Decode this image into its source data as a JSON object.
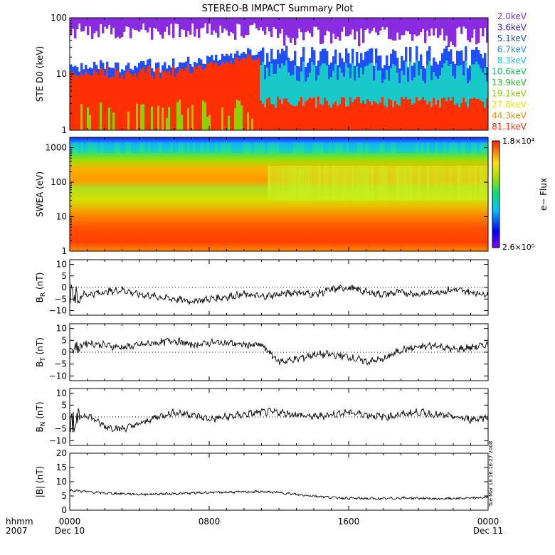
{
  "title": "STEREO-B IMPACT Summary Plot",
  "chart_data": [
    {
      "type": "area",
      "name": "ste",
      "ylabel": "STE D0 (keV)",
      "ylim": [
        1,
        100
      ],
      "log_scale": true,
      "y_ticks": [
        1,
        10,
        100
      ],
      "y_tick_labels": [
        "1",
        "10",
        "100"
      ],
      "energy_channels": [
        {
          "label": "2.0keV",
          "color": "#8a2be2"
        },
        {
          "label": "3.6keV",
          "color": "#3a1fd0"
        },
        {
          "label": "5.1keV",
          "color": "#1f4fff"
        },
        {
          "label": "6.7keV",
          "color": "#1f8fff"
        },
        {
          "label": "8.3keV",
          "color": "#19c8c8"
        },
        {
          "label": "10.6keV",
          "color": "#10c060"
        },
        {
          "label": "13.9keV",
          "color": "#20c020"
        },
        {
          "label": "19.1keV",
          "color": "#8fd000"
        },
        {
          "label": "27.8keV",
          "color": "#e8e800"
        },
        {
          "label": "44.3keV",
          "color": "#ff9000"
        },
        {
          "label": "81.1keV",
          "color": "#ff3000"
        }
      ]
    },
    {
      "type": "heatmap",
      "name": "swea",
      "ylabel": "SWEA (eV)",
      "ylim": [
        1,
        2000
      ],
      "log_scale": true,
      "y_ticks": [
        1,
        10,
        100,
        1000
      ],
      "y_tick_labels": [
        "1",
        "10",
        "100",
        "1000"
      ],
      "colorbar": {
        "label": "e− Flux",
        "max_label": "1.8×10⁴",
        "min_label": "2.6×10⁰"
      }
    },
    {
      "type": "line",
      "name": "br",
      "ylabel": "B_R (nT)",
      "ylim": [
        -12,
        12
      ],
      "y_ticks": [
        -10,
        -5,
        0,
        5,
        10
      ],
      "y_tick_labels": [
        "−10",
        "−5",
        "0",
        "5",
        "10"
      ],
      "x": [
        0,
        1,
        2,
        3,
        4,
        5,
        6,
        7,
        8,
        9,
        10,
        11,
        12,
        13,
        14,
        15,
        16,
        17,
        18,
        19,
        20,
        21,
        22,
        23,
        24
      ],
      "values": [
        -4,
        -3,
        -2,
        -1,
        -3,
        -4,
        -5,
        -6,
        -5,
        -4,
        -3,
        -4,
        -3,
        -2,
        -3,
        -1,
        0,
        -2,
        -3,
        -2,
        -3,
        -2,
        -1,
        -2,
        -3
      ]
    },
    {
      "type": "line",
      "name": "bt",
      "ylabel": "B_T (nT)",
      "ylim": [
        -12,
        12
      ],
      "y_ticks": [
        -10,
        -5,
        0,
        5,
        10
      ],
      "y_tick_labels": [
        "−10",
        "−5",
        "0",
        "5",
        "10"
      ],
      "x": [
        0,
        1,
        2,
        3,
        4,
        5,
        6,
        7,
        8,
        9,
        10,
        11,
        12,
        13,
        14,
        15,
        16,
        17,
        18,
        19,
        20,
        21,
        22,
        23,
        24
      ],
      "values": [
        1,
        4,
        3,
        2,
        3,
        4,
        5,
        3,
        4,
        4,
        3,
        3,
        -4,
        -3,
        -1,
        -1,
        -2,
        -4,
        -3,
        1,
        2,
        3,
        1,
        2,
        3
      ]
    },
    {
      "type": "line",
      "name": "bn",
      "ylabel": "B_N (nT)",
      "ylim": [
        -12,
        12
      ],
      "y_ticks": [
        -10,
        -5,
        0,
        5,
        10
      ],
      "y_tick_labels": [
        "−10",
        "−5",
        "0",
        "5",
        "10"
      ],
      "x": [
        0,
        1,
        2,
        3,
        4,
        5,
        6,
        7,
        8,
        9,
        10,
        11,
        12,
        13,
        14,
        15,
        16,
        17,
        18,
        19,
        20,
        21,
        22,
        23,
        24
      ],
      "values": [
        -2,
        1,
        -4,
        -5,
        -3,
        0,
        2,
        1,
        -1,
        0,
        1,
        2,
        2,
        1,
        0,
        1,
        2,
        1,
        0,
        1,
        2,
        1,
        0,
        -1,
        0
      ]
    },
    {
      "type": "line",
      "name": "bmag",
      "ylabel": "|B| (nT)",
      "ylim": [
        0,
        20
      ],
      "y_ticks": [
        0,
        5,
        10,
        15,
        20
      ],
      "y_tick_labels": [
        "0",
        "5",
        "10",
        "15",
        "20"
      ],
      "x": [
        0,
        1,
        2,
        3,
        4,
        5,
        6,
        7,
        8,
        9,
        10,
        11,
        12,
        13,
        14,
        15,
        16,
        17,
        18,
        19,
        20,
        21,
        22,
        23,
        24
      ],
      "values": [
        7,
        6.5,
        6,
        5.8,
        5.6,
        5.7,
        5.8,
        6,
        6.2,
        6.3,
        6.4,
        6.5,
        6.2,
        5.5,
        5,
        4.5,
        4.2,
        4.1,
        4,
        4.3,
        4.2,
        4,
        4.1,
        4.2,
        4.5
      ]
    }
  ],
  "x_axis": {
    "row_labels": [
      "hhmm",
      "2007"
    ],
    "ticks": [
      {
        "x": 0,
        "label": "0000",
        "sub": "Dec 10"
      },
      {
        "x": 8,
        "label": "0800",
        "sub": ""
      },
      {
        "x": 16,
        "label": "1600",
        "sub": ""
      },
      {
        "x": 24,
        "label": "0000",
        "sub": "Dec 11"
      }
    ],
    "range": [
      0,
      24
    ]
  },
  "timestamp": "Tue Mar 18 16:16:27 2008"
}
